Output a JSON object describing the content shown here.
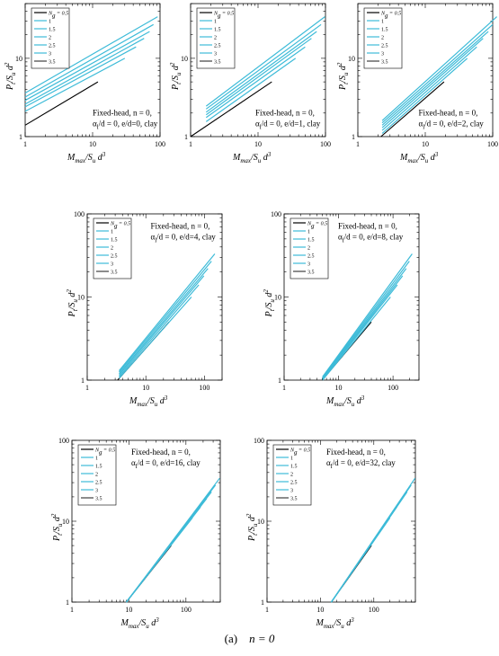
{
  "figure": {
    "caption_label": "(a)",
    "caption_math": "n = 0"
  },
  "colors": {
    "curve": "#3dbbd8",
    "base": "#000000",
    "legend_black": "#000000",
    "legend_dark": "#404040"
  },
  "chart_data": [
    {
      "type": "line",
      "log_x": true,
      "log_y": true,
      "xlim": [
        1,
        100
      ],
      "ylim": [
        1,
        50
      ],
      "x_ticks": [
        "1",
        "10",
        "100"
      ],
      "y_ticks": [
        "1",
        "10"
      ],
      "xlabel": "M_max/S_u d^3",
      "ylabel": "P_t/S_u d^2",
      "annotation": [
        "Fixed-head,  n = 0,",
        "α_l/d = 0,  e/d=0,  clay"
      ],
      "legend_title": "N_g = 0.5",
      "legend": [
        "N_g = 0.5",
        "1",
        "1.5",
        "2",
        "2.5",
        "3",
        "3.5"
      ],
      "series": [
        {
          "name": "0.5",
          "x": [
            1,
            12
          ],
          "y": [
            1.4,
            5.0
          ]
        },
        {
          "name": "1",
          "x": [
            1,
            30
          ],
          "y": [
            2.1,
            10.0
          ]
        },
        {
          "name": "1.5",
          "x": [
            1,
            44
          ],
          "y": [
            2.4,
            14.0
          ]
        },
        {
          "name": "2",
          "x": [
            1,
            58
          ],
          "y": [
            2.6,
            18.0
          ]
        },
        {
          "name": "2.5",
          "x": [
            1,
            70
          ],
          "y": [
            2.9,
            22.0
          ]
        },
        {
          "name": "3",
          "x": [
            1,
            80
          ],
          "y": [
            3.2,
            27.0
          ]
        },
        {
          "name": "3.5",
          "x": [
            1,
            92
          ],
          "y": [
            3.6,
            34.0
          ]
        }
      ]
    },
    {
      "type": "line",
      "log_x": true,
      "log_y": true,
      "xlim": [
        1,
        100
      ],
      "ylim": [
        1,
        50
      ],
      "x_ticks": [
        "1",
        "10",
        "100"
      ],
      "y_ticks": [
        "1",
        "10"
      ],
      "xlabel": "M_max/S_u d^3",
      "ylabel": "P_t/S_u d^2",
      "annotation": [
        "Fixed-head,  n = 0,",
        "α_l/d = 0,  e/d=1,  clay"
      ],
      "legend_title": "N_g = 0.5",
      "legend": [
        "N_g = 0.5",
        "1",
        "1.5",
        "2",
        "2.5",
        "3",
        "3.5"
      ],
      "series": [
        {
          "name": "0.5",
          "x": [
            1,
            16
          ],
          "y": [
            1.0,
            5.0
          ]
        },
        {
          "name": "1",
          "x": [
            1.7,
            36
          ],
          "y": [
            1.55,
            10.0
          ]
        },
        {
          "name": "1.5",
          "x": [
            1.7,
            50
          ],
          "y": [
            1.75,
            14.0
          ]
        },
        {
          "name": "2",
          "x": [
            1.7,
            62
          ],
          "y": [
            1.9,
            18.0
          ]
        },
        {
          "name": "2.5",
          "x": [
            1.7,
            74
          ],
          "y": [
            2.05,
            22.0
          ]
        },
        {
          "name": "3",
          "x": [
            1.7,
            86
          ],
          "y": [
            2.25,
            27.0
          ]
        },
        {
          "name": "3.5",
          "x": [
            1.7,
            98
          ],
          "y": [
            2.45,
            34.0
          ]
        }
      ]
    },
    {
      "type": "line",
      "log_x": true,
      "log_y": true,
      "xlim": [
        1,
        100
      ],
      "ylim": [
        1,
        50
      ],
      "x_ticks": [
        "1",
        "10",
        "100"
      ],
      "y_ticks": [
        "1",
        "10"
      ],
      "xlabel": "M_max/S_u d^3",
      "ylabel": "P_t/S_u d^2",
      "annotation": [
        "Fixed-head,  n = 0,",
        "α_l/d = 0,  e/d=2,  clay"
      ],
      "legend_title": "N_g = 0.5",
      "legend": [
        "N_g = 0.5",
        "1",
        "1.5",
        "2",
        "2.5",
        "3",
        "3.5"
      ],
      "series": [
        {
          "name": "0.5",
          "x": [
            2.2,
            19
          ],
          "y": [
            1.0,
            5.0
          ]
        },
        {
          "name": "1",
          "x": [
            2.3,
            42
          ],
          "y": [
            1.1,
            10.0
          ]
        },
        {
          "name": "1.5",
          "x": [
            2.3,
            58
          ],
          "y": [
            1.2,
            14.0
          ]
        },
        {
          "name": "2",
          "x": [
            2.3,
            72
          ],
          "y": [
            1.3,
            18.0
          ]
        },
        {
          "name": "2.5",
          "x": [
            2.3,
            86
          ],
          "y": [
            1.4,
            22.0
          ]
        },
        {
          "name": "3",
          "x": [
            2.3,
            100
          ],
          "y": [
            1.5,
            27.0
          ]
        },
        {
          "name": "3.5",
          "x": [
            2.3,
            115
          ],
          "y": [
            1.6,
            34.0
          ]
        }
      ]
    },
    {
      "type": "line",
      "log_x": true,
      "log_y": true,
      "xlim": [
        1,
        200
      ],
      "ylim": [
        1,
        100
      ],
      "x_ticks": [
        "1",
        "10",
        "100"
      ],
      "y_ticks": [
        "1",
        "10",
        "100"
      ],
      "xlabel": "M_max/S_u d^3",
      "ylabel": "P_t/S_u d^2",
      "annotation": [
        "Fixed-head,  n = 0,",
        "α_l/d = 0,  e/d=4,  clay"
      ],
      "legend_title": "N_g = 0.5",
      "legend": [
        "N_g = 0.5",
        "1",
        "1.5",
        "2",
        "2.5",
        "3",
        "3.5"
      ],
      "series": [
        {
          "name": "0.5",
          "x": [
            3.3,
            25
          ],
          "y": [
            1.0,
            5.0
          ]
        },
        {
          "name": "1",
          "x": [
            3.5,
            60
          ],
          "y": [
            1.05,
            10.0
          ]
        },
        {
          "name": "1.5",
          "x": [
            3.5,
            80
          ],
          "y": [
            1.1,
            14.0
          ]
        },
        {
          "name": "2",
          "x": [
            3.5,
            98
          ],
          "y": [
            1.15,
            18.0
          ]
        },
        {
          "name": "2.5",
          "x": [
            3.5,
            115
          ],
          "y": [
            1.2,
            22.0
          ]
        },
        {
          "name": "3",
          "x": [
            3.5,
            132
          ],
          "y": [
            1.25,
            27.0
          ]
        },
        {
          "name": "3.5",
          "x": [
            3.5,
            150
          ],
          "y": [
            1.3,
            33.0
          ]
        }
      ]
    },
    {
      "type": "line",
      "log_x": true,
      "log_y": true,
      "xlim": [
        1,
        300
      ],
      "ylim": [
        1,
        100
      ],
      "x_ticks": [
        "1",
        "10",
        "100"
      ],
      "y_ticks": [
        "1",
        "10",
        "100"
      ],
      "xlabel": "M_max/S_u d^3",
      "ylabel": "P_t/S_u d^2",
      "annotation": [
        "Fixed-head,  n = 0,",
        "α_l/d = 0,  e/d=8,  clay"
      ],
      "legend_title": "N_g = 0.5",
      "legend": [
        "N_g = 0.5",
        "1",
        "1.5",
        "2",
        "2.5",
        "3",
        "3.5"
      ],
      "series": [
        {
          "name": "0.5",
          "x": [
            5,
            40
          ],
          "y": [
            1.0,
            5.0
          ]
        },
        {
          "name": "1",
          "x": [
            5.1,
            90
          ],
          "y": [
            1.0,
            10.0
          ]
        },
        {
          "name": "1.5",
          "x": [
            5.1,
            120
          ],
          "y": [
            1.02,
            14.0
          ]
        },
        {
          "name": "2",
          "x": [
            5.1,
            150
          ],
          "y": [
            1.04,
            18.0
          ]
        },
        {
          "name": "2.5",
          "x": [
            5.1,
            175
          ],
          "y": [
            1.06,
            22.0
          ]
        },
        {
          "name": "3",
          "x": [
            5.1,
            200
          ],
          "y": [
            1.08,
            27.0
          ]
        },
        {
          "name": "3.5",
          "x": [
            5.1,
            225
          ],
          "y": [
            1.1,
            33.0
          ]
        }
      ]
    },
    {
      "type": "line",
      "log_x": true,
      "log_y": true,
      "xlim": [
        1,
        400
      ],
      "ylim": [
        1,
        100
      ],
      "x_ticks": [
        "1",
        "10",
        "100"
      ],
      "y_ticks": [
        "1",
        "10",
        "100"
      ],
      "xlabel": "M_max/S_u d^3",
      "ylabel": "P_t/S_u d^2",
      "annotation": [
        "Fixed-head,  n = 0,",
        "α_l/d = 0,  e/d=16, clay"
      ],
      "legend_title": "N_g = 0.5",
      "legend": [
        "N_g = 0.5",
        "1",
        "1.5",
        "2",
        "2.5",
        "3",
        "3.5"
      ],
      "series": [
        {
          "name": "0.5",
          "x": [
            9,
            55
          ],
          "y": [
            1.0,
            5.0
          ]
        },
        {
          "name": "1",
          "x": [
            9,
            130
          ],
          "y": [
            1.0,
            11.0
          ]
        },
        {
          "name": "1.5",
          "x": [
            9,
            180
          ],
          "y": [
            1.0,
            15.0
          ]
        },
        {
          "name": "2",
          "x": [
            9,
            230
          ],
          "y": [
            1.0,
            19.0
          ]
        },
        {
          "name": "2.5",
          "x": [
            9,
            280
          ],
          "y": [
            1.0,
            23.0
          ]
        },
        {
          "name": "3",
          "x": [
            9,
            330
          ],
          "y": [
            1.0,
            28.0
          ]
        },
        {
          "name": "3.5",
          "x": [
            9,
            390
          ],
          "y": [
            1.0,
            34.0
          ]
        }
      ]
    },
    {
      "type": "line",
      "log_x": true,
      "log_y": true,
      "xlim": [
        1,
        600
      ],
      "ylim": [
        1,
        100
      ],
      "x_ticks": [
        "1",
        "10",
        "100"
      ],
      "y_ticks": [
        "1",
        "10",
        "100"
      ],
      "xlabel": "M_max/S_u d^3",
      "ylabel": "P_t/S_u d^2",
      "annotation": [
        "Fixed-head,  n = 0,",
        "α_l/d = 0,  e/d=32,  clay"
      ],
      "legend_title": "N_g = 0.5",
      "legend": [
        "N_g = 0.5",
        "1",
        "1.5",
        "2",
        "2.5",
        "3",
        "3.5"
      ],
      "series": [
        {
          "name": "0.5",
          "x": [
            16,
            90
          ],
          "y": [
            1.0,
            5.0
          ]
        },
        {
          "name": "1",
          "x": [
            16,
            200
          ],
          "y": [
            1.0,
            11.0
          ]
        },
        {
          "name": "1.5",
          "x": [
            16,
            270
          ],
          "y": [
            1.0,
            15.0
          ]
        },
        {
          "name": "2",
          "x": [
            16,
            340
          ],
          "y": [
            1.0,
            19.0
          ]
        },
        {
          "name": "2.5",
          "x": [
            16,
            420
          ],
          "y": [
            1.0,
            23.0
          ]
        },
        {
          "name": "3",
          "x": [
            16,
            500
          ],
          "y": [
            1.0,
            28.0
          ]
        },
        {
          "name": "3.5",
          "x": [
            16,
            590
          ],
          "y": [
            1.0,
            34.0
          ]
        }
      ]
    }
  ]
}
